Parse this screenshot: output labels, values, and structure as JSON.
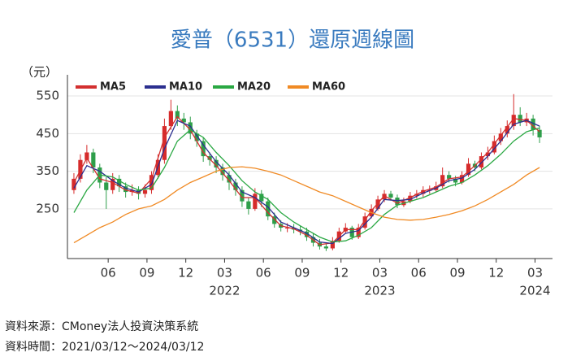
{
  "chart_data": {
    "type": "candlestick",
    "title": "愛普（6531）還原週線圖",
    "y_unit": "（元）",
    "notes": [
      "資料來源：CMoney法人投資決策系統",
      "資料時間：2021/03/12～2024/03/12"
    ],
    "up_color": "#d62b2b",
    "down_color": "#2e9e4a",
    "xlim": [
      -1,
      74
    ],
    "ylim": [
      118,
      589
    ],
    "yticks": [
      250,
      350,
      450,
      550
    ],
    "grid": true,
    "legend": "top-left",
    "xticks": [
      {
        "value": 5.3,
        "label": "06"
      },
      {
        "value": 11.3,
        "label": "09"
      },
      {
        "value": 17.3,
        "label": "12"
      },
      {
        "value": 23.3,
        "label": "03"
      },
      {
        "value": 29.3,
        "label": "06"
      },
      {
        "value": 35.3,
        "label": "09"
      },
      {
        "value": 41.3,
        "label": "12"
      },
      {
        "value": 47.3,
        "label": "03"
      },
      {
        "value": 53.3,
        "label": "06"
      },
      {
        "value": 59.3,
        "label": "09"
      },
      {
        "value": 65.3,
        "label": "12"
      },
      {
        "value": 71.3,
        "label": "03"
      }
    ],
    "x_year_labels": [
      {
        "value": 23.3,
        "label": "2022"
      },
      {
        "value": 47.3,
        "label": "2023"
      },
      {
        "value": 71.3,
        "label": "2024"
      }
    ],
    "candles": {
      "x": [
        0,
        1,
        2,
        3,
        4,
        5,
        6,
        7,
        8,
        9,
        10,
        11,
        12,
        13,
        14,
        15,
        16,
        17,
        18,
        19,
        20,
        21,
        22,
        23,
        24,
        25,
        26,
        27,
        28,
        29,
        30,
        31,
        32,
        33,
        34,
        35,
        36,
        37,
        38,
        39,
        40,
        41,
        42,
        43,
        44,
        45,
        46,
        47,
        48,
        49,
        50,
        51,
        52,
        53,
        54,
        55,
        56,
        57,
        58,
        59,
        60,
        61,
        62,
        63,
        64,
        65,
        66,
        67,
        68,
        69,
        70,
        71,
        72
      ],
      "open": [
        300,
        330,
        380,
        400,
        360,
        320,
        300,
        330,
        310,
        295,
        300,
        290,
        300,
        340,
        380,
        470,
        510,
        490,
        480,
        450,
        430,
        390,
        380,
        360,
        340,
        320,
        300,
        270,
        250,
        290,
        270,
        230,
        210,
        200,
        200,
        195,
        190,
        175,
        160,
        150,
        145,
        165,
        190,
        200,
        175,
        200,
        230,
        250,
        275,
        290,
        280,
        260,
        270,
        285,
        290,
        300,
        300,
        310,
        340,
        330,
        320,
        340,
        370,
        360,
        390,
        400,
        430,
        450,
        470,
        500,
        480,
        490,
        460
      ],
      "high": [
        345,
        395,
        420,
        410,
        370,
        335,
        345,
        340,
        320,
        315,
        310,
        315,
        350,
        395,
        490,
        540,
        525,
        505,
        495,
        460,
        440,
        400,
        390,
        370,
        350,
        330,
        310,
        280,
        305,
        300,
        280,
        240,
        220,
        212,
        210,
        205,
        200,
        185,
        170,
        158,
        175,
        200,
        212,
        205,
        210,
        240,
        262,
        285,
        300,
        298,
        288,
        280,
        295,
        300,
        310,
        312,
        322,
        360,
        350,
        338,
        350,
        385,
        378,
        400,
        415,
        445,
        465,
        485,
        555,
        520,
        505,
        500,
        470
      ],
      "low": [
        290,
        320,
        370,
        345,
        305,
        250,
        290,
        295,
        280,
        285,
        275,
        280,
        290,
        330,
        370,
        460,
        470,
        460,
        435,
        415,
        375,
        365,
        345,
        325,
        300,
        285,
        255,
        235,
        245,
        255,
        220,
        200,
        190,
        188,
        185,
        180,
        165,
        150,
        142,
        138,
        140,
        160,
        185,
        168,
        170,
        195,
        225,
        245,
        268,
        272,
        252,
        255,
        265,
        278,
        282,
        290,
        295,
        305,
        320,
        310,
        315,
        335,
        350,
        355,
        380,
        395,
        420,
        440,
        460,
        470,
        470,
        445,
        425
      ],
      "close": [
        330,
        380,
        400,
        360,
        320,
        300,
        330,
        310,
        295,
        300,
        290,
        300,
        340,
        380,
        470,
        510,
        490,
        480,
        450,
        430,
        390,
        380,
        360,
        340,
        320,
        300,
        270,
        250,
        290,
        270,
        230,
        210,
        200,
        200,
        195,
        190,
        175,
        160,
        150,
        145,
        165,
        190,
        200,
        175,
        200,
        230,
        250,
        275,
        290,
        280,
        260,
        270,
        285,
        290,
        300,
        300,
        310,
        340,
        330,
        320,
        340,
        370,
        360,
        390,
        400,
        430,
        450,
        470,
        500,
        480,
        490,
        460,
        440
      ]
    },
    "series": [
      {
        "name": "MA5",
        "color": "#d32f2f",
        "x": [
          0,
          2,
          4,
          6,
          8,
          10,
          12,
          14,
          16,
          18,
          20,
          22,
          24,
          26,
          28,
          30,
          32,
          34,
          36,
          38,
          40,
          42,
          44,
          46,
          48,
          50,
          52,
          54,
          56,
          58,
          60,
          62,
          64,
          66,
          68,
          70,
          72
        ],
        "values": [
          320,
          385,
          330,
          320,
          300,
          292,
          330,
          440,
          495,
          460,
          400,
          365,
          325,
          280,
          280,
          240,
          205,
          197,
          180,
          155,
          160,
          195,
          195,
          245,
          285,
          265,
          280,
          297,
          308,
          330,
          335,
          365,
          400,
          445,
          490,
          485,
          455
        ]
      },
      {
        "name": "MA10",
        "color": "#2b2f8f",
        "x": [
          0,
          2,
          4,
          6,
          8,
          10,
          12,
          14,
          16,
          18,
          20,
          22,
          24,
          26,
          28,
          30,
          32,
          34,
          36,
          38,
          40,
          42,
          44,
          46,
          48,
          50,
          52,
          54,
          56,
          58,
          60,
          62,
          64,
          66,
          68,
          70,
          72
        ],
        "values": [
          305,
          365,
          350,
          325,
          305,
          295,
          315,
          410,
          485,
          470,
          420,
          375,
          340,
          295,
          280,
          255,
          215,
          200,
          185,
          162,
          158,
          185,
          192,
          228,
          275,
          272,
          275,
          292,
          305,
          325,
          332,
          355,
          390,
          430,
          475,
          485,
          470
        ]
      },
      {
        "name": "MA20",
        "color": "#2aa843",
        "x": [
          0,
          2,
          4,
          6,
          8,
          10,
          12,
          14,
          16,
          18,
          20,
          22,
          24,
          26,
          28,
          30,
          32,
          34,
          36,
          38,
          40,
          42,
          44,
          46,
          48,
          50,
          52,
          54,
          56,
          58,
          60,
          62,
          64,
          66,
          68,
          70,
          72
        ],
        "values": [
          240,
          300,
          340,
          335,
          315,
          300,
          305,
          360,
          430,
          460,
          440,
          400,
          365,
          325,
          295,
          275,
          240,
          215,
          195,
          175,
          162,
          165,
          180,
          200,
          235,
          260,
          270,
          280,
          295,
          310,
          320,
          340,
          365,
          395,
          430,
          455,
          465
        ]
      },
      {
        "name": "MA60",
        "color": "#f08a24",
        "x": [
          0,
          2,
          4,
          6,
          8,
          10,
          12,
          14,
          16,
          18,
          20,
          22,
          24,
          26,
          28,
          30,
          32,
          34,
          36,
          38,
          40,
          42,
          44,
          46,
          48,
          50,
          52,
          54,
          56,
          58,
          60,
          62,
          64,
          66,
          68,
          70,
          72
        ],
        "values": [
          160,
          180,
          200,
          215,
          235,
          250,
          258,
          275,
          300,
          320,
          335,
          350,
          360,
          362,
          358,
          350,
          340,
          325,
          310,
          295,
          285,
          270,
          255,
          240,
          228,
          222,
          220,
          222,
          228,
          235,
          245,
          258,
          275,
          295,
          315,
          340,
          360
        ]
      }
    ]
  }
}
